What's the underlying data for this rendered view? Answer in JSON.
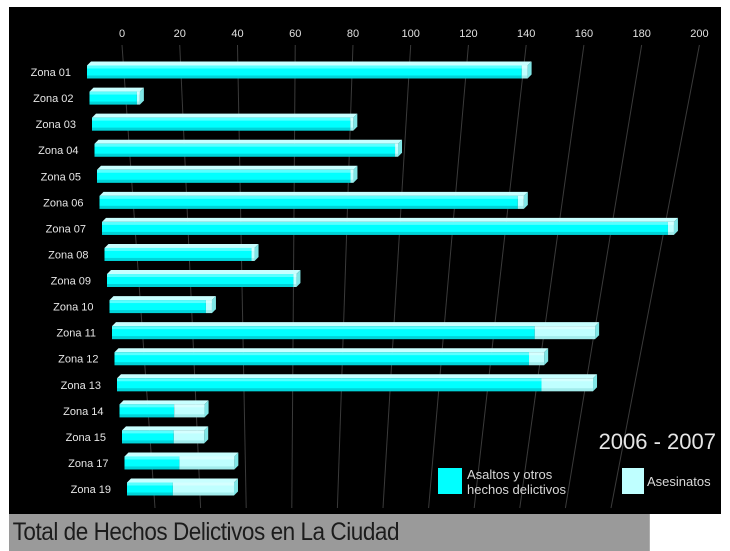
{
  "chart_data": {
    "type": "bar",
    "orientation": "horizontal",
    "style": "3d-perspective",
    "title": "Total de Hechos Delictivos en La Ciudad",
    "period": "2006 - 2007",
    "xlim": [
      0,
      200
    ],
    "x_ticks": [
      "0",
      "20",
      "40",
      "60",
      "80",
      "100",
      "120",
      "140",
      "160",
      "180",
      "200"
    ],
    "categories": [
      "Zona 01",
      "Zona 02",
      "Zona 03",
      "Zona 04",
      "Zona 05",
      "Zona 06",
      "Zona 07",
      "Zona 08",
      "Zona 09",
      "Zona 10",
      "Zona 11",
      "Zona 12",
      "Zona 13",
      "Zona 14",
      "Zona 15",
      "Zona 17",
      "Zona 19"
    ],
    "series": [
      {
        "name": "Asaltos y otros hechos delictivos",
        "color": "#00ffff",
        "values": [
          147,
          16,
          87,
          101,
          85,
          140,
          189,
          49,
          62,
          32,
          140,
          137,
          140,
          18,
          17,
          18,
          15
        ]
      },
      {
        "name": "Asesinatos",
        "color": "#bfffff",
        "values": [
          2,
          1,
          1,
          1,
          1,
          2,
          2,
          1,
          1,
          2,
          20,
          5,
          17,
          10,
          10,
          18,
          20
        ]
      }
    ],
    "legend": {
      "placement": "bottom-right",
      "labels": [
        "Asaltos y otros hechos delictivos",
        "Asesinatos"
      ]
    },
    "grid": true,
    "background": "#000000"
  }
}
